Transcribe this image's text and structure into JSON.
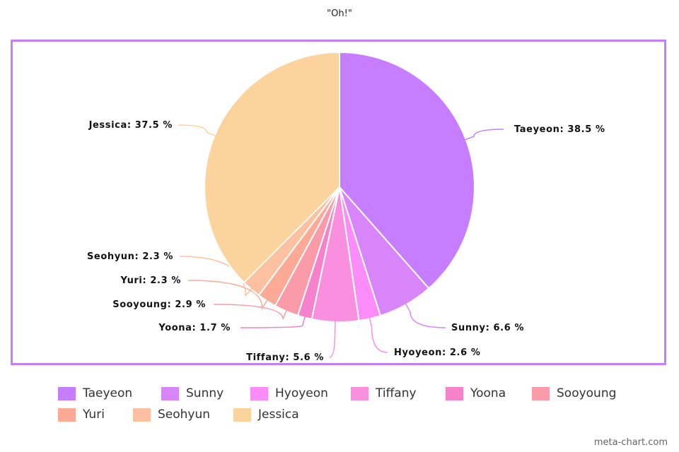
{
  "chart_data": {
    "type": "pie",
    "title": "\"Oh!\"",
    "categories": [
      "Taeyeon",
      "Sunny",
      "Hyoyeon",
      "Tiffany",
      "Yoona",
      "Sooyoung",
      "Yuri",
      "Seohyun",
      "Jessica"
    ],
    "values": [
      38.5,
      6.6,
      2.6,
      5.6,
      1.7,
      2.9,
      2.3,
      2.3,
      37.5
    ],
    "labels": [
      "Taeyeon: 38.5 %",
      "Sunny: 6.6 %",
      "Hyoyeon: 2.6 %",
      "Tiffany: 5.6 %",
      "Yoona: 1.7 %",
      "Sooyoung: 2.9 %",
      "Yuri: 2.3 %",
      "Seohyun: 2.3 %",
      "Jessica: 37.5 %"
    ],
    "colors": [
      "#c77dff",
      "#d885fa",
      "#fc8cfa",
      "#f98fde",
      "#f682cc",
      "#fb9aa8",
      "#fcaa96",
      "#fdc0a0",
      "#fdd39d"
    ],
    "legend_position": "bottom",
    "border_color": "#c77dff"
  },
  "credit": "meta-chart.com"
}
